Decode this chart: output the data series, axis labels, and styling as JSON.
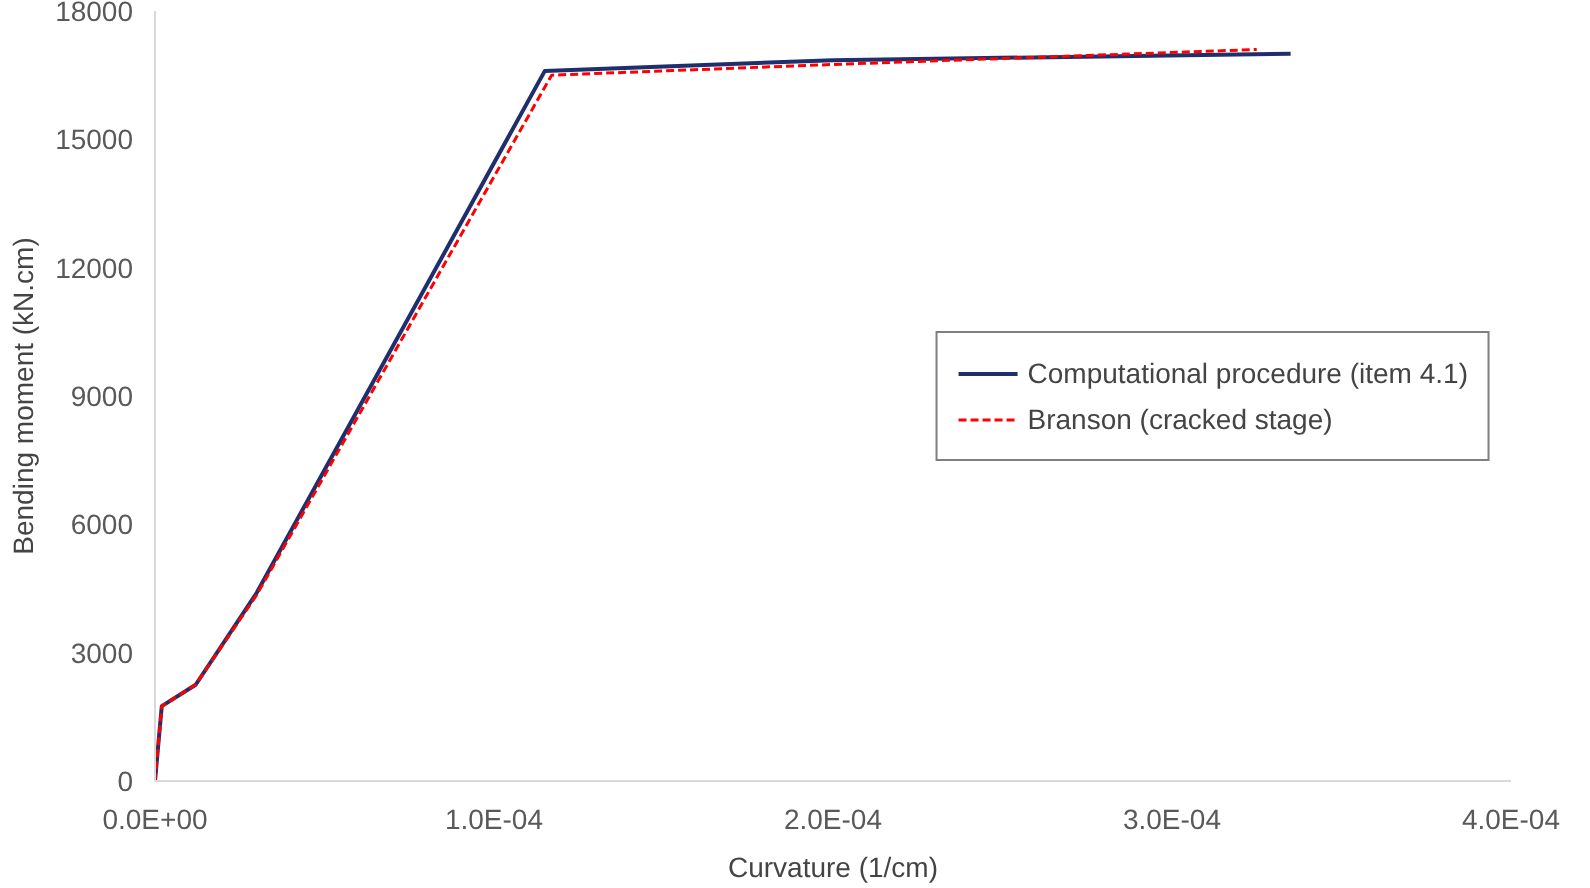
{
  "chart_data": {
    "type": "line",
    "xlabel": "Curvature (1/cm)",
    "ylabel": "Bending moment (kN.cm)",
    "xlim": [
      0,
      0.0004
    ],
    "ylim": [
      0,
      18000
    ],
    "xticks": [
      {
        "value": 0,
        "label": "0.0E+00"
      },
      {
        "value": 0.0001,
        "label": "1.0E-04"
      },
      {
        "value": 0.0002,
        "label": "2.0E-04"
      },
      {
        "value": 0.0003,
        "label": "3.0E-04"
      },
      {
        "value": 0.0004,
        "label": "4.0E-04"
      }
    ],
    "yticks": [
      0,
      3000,
      6000,
      9000,
      12000,
      15000,
      18000
    ],
    "grid": false,
    "legend": "right",
    "marker": "none",
    "series": [
      {
        "name": "Computational procedure (item 4.1)",
        "color": "#1f2f6e",
        "line_style": "solid",
        "x": [
          0,
          2e-06,
          1.2e-05,
          3e-05,
          0.000115,
          0.0002,
          0.000335
        ],
        "values": [
          0,
          1750,
          2250,
          4400,
          16600,
          16850,
          17000
        ]
      },
      {
        "name": "Branson (cracked stage)",
        "color": "#ff0000",
        "line_style": "dashed",
        "x": [
          0,
          2e-06,
          1.2e-05,
          3e-05,
          0.000117,
          0.0002,
          0.000325
        ],
        "values": [
          0,
          1750,
          2250,
          4350,
          16500,
          16750,
          17100
        ]
      }
    ]
  }
}
